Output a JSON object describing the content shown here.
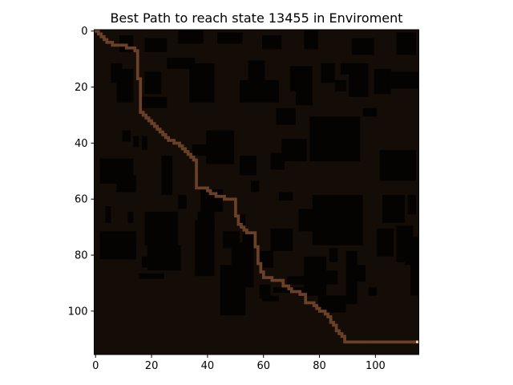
{
  "chart_data": {
    "type": "heatmap",
    "title": "Best Path to reach state 13455 in Enviroment",
    "xlabel": "",
    "ylabel": "",
    "grid_size": [
      116,
      116
    ],
    "xlim": [
      0,
      116
    ],
    "ylim": [
      116,
      0
    ],
    "x_ticks": [
      0,
      20,
      40,
      60,
      80,
      100
    ],
    "y_ticks": [
      0,
      20,
      40,
      60,
      80,
      100
    ],
    "grid": false,
    "colors": {
      "background": "#140d07",
      "obstacle": "#050302",
      "path": "#6b4028",
      "goal": "#f5c27a"
    },
    "obstacles": [
      [
        9,
        2,
        5,
        6
      ],
      [
        18,
        3,
        8,
        5
      ],
      [
        30,
        0,
        9,
        5
      ],
      [
        44,
        1,
        9,
        4
      ],
      [
        60,
        2,
        7,
        5
      ],
      [
        75,
        0,
        5,
        7
      ],
      [
        92,
        3,
        8,
        6
      ],
      [
        108,
        1,
        7,
        8
      ],
      [
        6,
        12,
        4,
        7
      ],
      [
        26,
        10,
        10,
        4
      ],
      [
        55,
        11,
        6,
        6
      ],
      [
        88,
        12,
        5,
        4
      ],
      [
        8,
        14,
        6,
        12
      ],
      [
        18,
        15,
        6,
        8
      ],
      [
        34,
        12,
        9,
        14
      ],
      [
        55,
        15,
        6,
        7
      ],
      [
        70,
        13,
        8,
        9
      ],
      [
        91,
        12,
        7,
        12
      ],
      [
        100,
        14,
        6,
        9
      ],
      [
        106,
        15,
        10,
        6
      ],
      [
        17,
        24,
        9,
        4
      ],
      [
        52,
        18,
        14,
        8
      ],
      [
        72,
        21,
        6,
        6
      ],
      [
        81,
        12,
        5,
        7
      ],
      [
        86,
        18,
        4,
        4
      ],
      [
        65,
        28,
        7,
        6
      ],
      [
        77,
        31,
        18,
        16
      ],
      [
        96,
        28,
        5,
        3
      ],
      [
        10,
        36,
        3,
        4
      ],
      [
        14,
        38,
        2,
        4
      ],
      [
        40,
        36,
        10,
        12
      ],
      [
        35,
        41,
        5,
        4
      ],
      [
        67,
        39,
        9,
        8
      ],
      [
        80,
        36,
        6,
        9
      ],
      [
        17,
        38,
        2,
        5
      ],
      [
        2,
        46,
        12,
        9
      ],
      [
        8,
        52,
        7,
        6
      ],
      [
        24,
        45,
        4,
        14
      ],
      [
        52,
        45,
        6,
        7
      ],
      [
        63,
        44,
        5,
        6
      ],
      [
        102,
        43,
        13,
        11
      ],
      [
        56,
        54,
        3,
        4
      ],
      [
        38,
        57,
        8,
        8
      ],
      [
        30,
        59,
        3,
        5
      ],
      [
        37,
        65,
        6,
        7
      ],
      [
        51,
        66,
        3,
        4
      ],
      [
        66,
        58,
        5,
        3
      ],
      [
        78,
        59,
        18,
        18
      ],
      [
        73,
        64,
        7,
        8
      ],
      [
        103,
        59,
        8,
        10
      ],
      [
        112,
        59,
        3,
        7
      ],
      [
        4,
        63,
        2,
        6
      ],
      [
        12,
        65,
        2,
        4
      ],
      [
        2,
        72,
        13,
        10
      ],
      [
        18,
        65,
        12,
        12
      ],
      [
        19,
        77,
        12,
        9
      ],
      [
        36,
        68,
        7,
        20
      ],
      [
        46,
        72,
        6,
        6
      ],
      [
        53,
        73,
        4,
        6
      ],
      [
        63,
        71,
        8,
        8
      ],
      [
        101,
        71,
        6,
        10
      ],
      [
        108,
        70,
        6,
        13
      ],
      [
        13,
        76,
        2,
        6
      ],
      [
        17,
        81,
        2,
        4
      ],
      [
        49,
        76,
        8,
        16
      ],
      [
        59,
        79,
        5,
        6
      ],
      [
        75,
        81,
        8,
        14
      ],
      [
        84,
        78,
        3,
        5
      ],
      [
        90,
        79,
        4,
        19
      ],
      [
        111,
        74,
        5,
        10
      ],
      [
        113,
        83,
        3,
        12
      ],
      [
        16,
        87,
        9,
        2
      ],
      [
        45,
        84,
        9,
        18
      ],
      [
        59,
        91,
        4,
        5
      ],
      [
        64,
        92,
        12,
        2
      ],
      [
        69,
        88,
        8,
        3
      ],
      [
        82,
        86,
        5,
        5
      ],
      [
        60,
        95,
        6,
        2
      ],
      [
        80,
        95,
        10,
        6
      ],
      [
        92,
        84,
        5,
        6
      ],
      [
        98,
        92,
        3,
        3
      ]
    ],
    "path": [
      [
        0,
        0
      ],
      [
        1,
        0
      ],
      [
        1,
        1
      ],
      [
        2,
        1
      ],
      [
        2,
        2
      ],
      [
        3,
        2
      ],
      [
        3,
        3
      ],
      [
        4,
        3
      ],
      [
        4,
        4
      ],
      [
        5,
        4
      ],
      [
        6,
        4
      ],
      [
        6,
        5
      ],
      [
        7,
        5
      ],
      [
        8,
        5
      ],
      [
        9,
        5
      ],
      [
        10,
        5
      ],
      [
        11,
        5
      ],
      [
        11,
        6
      ],
      [
        12,
        6
      ],
      [
        13,
        6
      ],
      [
        14,
        6
      ],
      [
        14,
        7
      ],
      [
        15,
        7
      ],
      [
        15,
        8
      ],
      [
        15,
        9
      ],
      [
        15,
        10
      ],
      [
        15,
        11
      ],
      [
        15,
        12
      ],
      [
        15,
        13
      ],
      [
        15,
        14
      ],
      [
        15,
        15
      ],
      [
        15,
        16
      ],
      [
        15,
        17
      ],
      [
        16,
        17
      ],
      [
        16,
        18
      ],
      [
        16,
        19
      ],
      [
        16,
        20
      ],
      [
        16,
        21
      ],
      [
        16,
        22
      ],
      [
        16,
        23
      ],
      [
        16,
        24
      ],
      [
        16,
        25
      ],
      [
        16,
        26
      ],
      [
        16,
        27
      ],
      [
        16,
        28
      ],
      [
        16,
        29
      ],
      [
        17,
        29
      ],
      [
        17,
        30
      ],
      [
        18,
        30
      ],
      [
        18,
        31
      ],
      [
        19,
        31
      ],
      [
        19,
        32
      ],
      [
        20,
        32
      ],
      [
        20,
        33
      ],
      [
        21,
        33
      ],
      [
        21,
        34
      ],
      [
        22,
        34
      ],
      [
        22,
        35
      ],
      [
        23,
        35
      ],
      [
        23,
        36
      ],
      [
        24,
        36
      ],
      [
        24,
        37
      ],
      [
        25,
        37
      ],
      [
        25,
        38
      ],
      [
        26,
        38
      ],
      [
        26,
        39
      ],
      [
        27,
        39
      ],
      [
        28,
        39
      ],
      [
        28,
        40
      ],
      [
        29,
        40
      ],
      [
        30,
        40
      ],
      [
        30,
        41
      ],
      [
        31,
        41
      ],
      [
        31,
        42
      ],
      [
        32,
        42
      ],
      [
        32,
        43
      ],
      [
        33,
        43
      ],
      [
        33,
        44
      ],
      [
        34,
        44
      ],
      [
        34,
        45
      ],
      [
        35,
        45
      ],
      [
        35,
        46
      ],
      [
        36,
        46
      ],
      [
        36,
        47
      ],
      [
        36,
        48
      ],
      [
        36,
        49
      ],
      [
        36,
        50
      ],
      [
        36,
        51
      ],
      [
        36,
        52
      ],
      [
        36,
        53
      ],
      [
        36,
        54
      ],
      [
        36,
        55
      ],
      [
        36,
        56
      ],
      [
        37,
        56
      ],
      [
        38,
        56
      ],
      [
        39,
        56
      ],
      [
        40,
        56
      ],
      [
        40,
        57
      ],
      [
        41,
        57
      ],
      [
        41,
        58
      ],
      [
        42,
        58
      ],
      [
        43,
        58
      ],
      [
        43,
        59
      ],
      [
        44,
        59
      ],
      [
        45,
        59
      ],
      [
        46,
        59
      ],
      [
        46,
        60
      ],
      [
        47,
        60
      ],
      [
        48,
        60
      ],
      [
        49,
        60
      ],
      [
        50,
        60
      ],
      [
        50,
        61
      ],
      [
        50,
        62
      ],
      [
        50,
        63
      ],
      [
        50,
        64
      ],
      [
        50,
        65
      ],
      [
        50,
        66
      ],
      [
        51,
        66
      ],
      [
        51,
        67
      ],
      [
        51,
        68
      ],
      [
        51,
        69
      ],
      [
        52,
        69
      ],
      [
        52,
        70
      ],
      [
        53,
        70
      ],
      [
        53,
        71
      ],
      [
        54,
        71
      ],
      [
        54,
        72
      ],
      [
        55,
        72
      ],
      [
        56,
        72
      ],
      [
        57,
        72
      ],
      [
        57,
        73
      ],
      [
        57,
        74
      ],
      [
        57,
        75
      ],
      [
        57,
        76
      ],
      [
        57,
        77
      ],
      [
        58,
        77
      ],
      [
        58,
        78
      ],
      [
        58,
        79
      ],
      [
        58,
        80
      ],
      [
        58,
        81
      ],
      [
        58,
        82
      ],
      [
        58,
        83
      ],
      [
        59,
        83
      ],
      [
        59,
        84
      ],
      [
        59,
        85
      ],
      [
        59,
        86
      ],
      [
        60,
        86
      ],
      [
        60,
        87
      ],
      [
        60,
        88
      ],
      [
        61,
        88
      ],
      [
        62,
        88
      ],
      [
        63,
        88
      ],
      [
        63,
        89
      ],
      [
        64,
        89
      ],
      [
        65,
        89
      ],
      [
        66,
        89
      ],
      [
        67,
        89
      ],
      [
        67,
        90
      ],
      [
        67,
        91
      ],
      [
        68,
        91
      ],
      [
        69,
        91
      ],
      [
        69,
        92
      ],
      [
        70,
        92
      ],
      [
        70,
        93
      ],
      [
        71,
        93
      ],
      [
        72,
        93
      ],
      [
        73,
        93
      ],
      [
        73,
        94
      ],
      [
        74,
        94
      ],
      [
        75,
        94
      ],
      [
        75,
        95
      ],
      [
        75,
        96
      ],
      [
        75,
        97
      ],
      [
        76,
        97
      ],
      [
        77,
        97
      ],
      [
        78,
        97
      ],
      [
        78,
        98
      ],
      [
        79,
        98
      ],
      [
        79,
        99
      ],
      [
        80,
        99
      ],
      [
        80,
        100
      ],
      [
        81,
        100
      ],
      [
        82,
        100
      ],
      [
        82,
        101
      ],
      [
        83,
        101
      ],
      [
        83,
        102
      ],
      [
        84,
        102
      ],
      [
        84,
        103
      ],
      [
        84,
        104
      ],
      [
        85,
        104
      ],
      [
        85,
        105
      ],
      [
        86,
        105
      ],
      [
        86,
        106
      ],
      [
        86,
        107
      ],
      [
        87,
        107
      ],
      [
        87,
        108
      ],
      [
        88,
        108
      ],
      [
        88,
        109
      ],
      [
        89,
        109
      ],
      [
        89,
        110
      ],
      [
        89,
        111
      ],
      [
        90,
        111
      ],
      [
        91,
        111
      ],
      [
        92,
        111
      ],
      [
        93,
        111
      ],
      [
        94,
        111
      ],
      [
        95,
        111
      ],
      [
        96,
        111
      ],
      [
        97,
        111
      ],
      [
        98,
        111
      ],
      [
        99,
        111
      ],
      [
        100,
        111
      ],
      [
        101,
        111
      ],
      [
        102,
        111
      ],
      [
        103,
        111
      ],
      [
        104,
        111
      ],
      [
        105,
        111
      ],
      [
        106,
        111
      ],
      [
        107,
        111
      ],
      [
        108,
        111
      ],
      [
        109,
        111
      ],
      [
        110,
        111
      ],
      [
        111,
        111
      ],
      [
        112,
        111
      ],
      [
        113,
        111
      ],
      [
        114,
        111
      ]
    ],
    "goal": [
      115,
      111
    ]
  }
}
